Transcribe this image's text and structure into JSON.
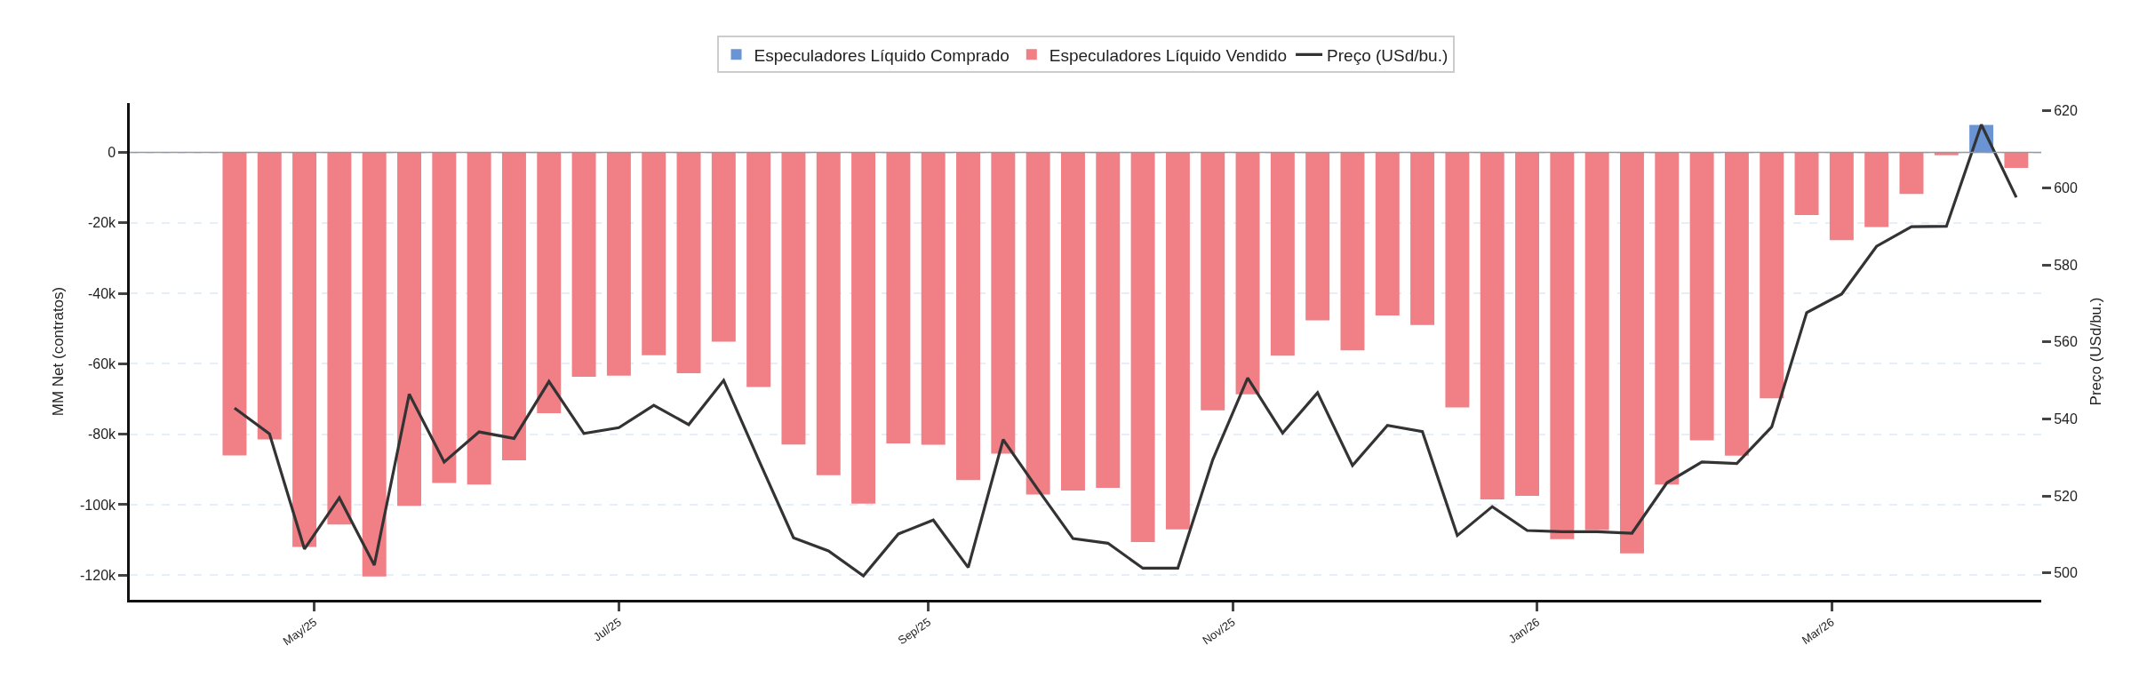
{
  "chart_data": {
    "type": "bar",
    "x": [
      "2025-04-15",
      "2025-04-22",
      "2025-04-29",
      "2025-05-06",
      "2025-05-13",
      "2025-05-20",
      "2025-05-27",
      "2025-06-03",
      "2025-06-10",
      "2025-06-17",
      "2025-06-24",
      "2025-07-01",
      "2025-07-08",
      "2025-07-15",
      "2025-07-22",
      "2025-07-29",
      "2025-08-05",
      "2025-08-12",
      "2025-08-19",
      "2025-08-26",
      "2025-09-02",
      "2025-09-09",
      "2025-09-16",
      "2025-09-23",
      "2025-09-30",
      "2025-10-07",
      "2025-10-14",
      "2025-10-21",
      "2025-10-28",
      "2025-11-04",
      "2025-11-11",
      "2025-11-18",
      "2025-11-25",
      "2025-12-02",
      "2025-12-09",
      "2025-12-16",
      "2025-12-23",
      "2025-12-30",
      "2026-01-06",
      "2026-01-13",
      "2026-01-20",
      "2026-01-27",
      "2026-02-03",
      "2026-02-10",
      "2026-02-17",
      "2026-02-24",
      "2026-03-03",
      "2026-03-10",
      "2026-03-17",
      "2026-03-24",
      "2026-03-31",
      "2026-04-07"
    ],
    "series": [
      {
        "name": "Especuladores Líquido Comprado",
        "color": "#6a94d4",
        "values": [
          null,
          null,
          null,
          null,
          null,
          null,
          null,
          null,
          null,
          null,
          null,
          null,
          null,
          null,
          null,
          null,
          null,
          null,
          null,
          null,
          null,
          null,
          null,
          null,
          null,
          null,
          null,
          null,
          null,
          null,
          null,
          null,
          null,
          null,
          null,
          null,
          null,
          null,
          null,
          null,
          null,
          null,
          null,
          null,
          null,
          null,
          null,
          null,
          null,
          null,
          7800,
          null
        ]
      },
      {
        "name": "Especuladores Líquido Vendido",
        "color": "#f07f86",
        "values": [
          -86000,
          -81500,
          -112000,
          -105600,
          -120400,
          -100300,
          -93800,
          -94300,
          -87400,
          -74000,
          -63700,
          -63400,
          -57600,
          -62700,
          -53700,
          -66600,
          -82900,
          -91600,
          -99700,
          -82600,
          -83000,
          -93000,
          -85500,
          -97100,
          -96000,
          -95200,
          -110600,
          -107000,
          -73200,
          -68700,
          -57700,
          -47700,
          -56200,
          -46300,
          -49000,
          -72400,
          -98500,
          -97500,
          -109800,
          -107200,
          -113800,
          -94300,
          -81700,
          -86100,
          -69800,
          -17800,
          -24900,
          -21200,
          -11800,
          -800,
          null,
          -4400
        ]
      },
      {
        "name": "Preço (USd/bu.)",
        "type": "line",
        "axis": "y2",
        "color": "#333333",
        "values": [
          542.8,
          536.1,
          506.2,
          519.5,
          502.0,
          546.4,
          528.8,
          536.6,
          534.9,
          549.7,
          536.2,
          537.7,
          543.5,
          538.5,
          550.0,
          529.4,
          509.1,
          505.7,
          499.2,
          510.1,
          513.7,
          501.4,
          534.6,
          521.6,
          508.9,
          507.7,
          501.2,
          501.2,
          529.4,
          550.6,
          536.3,
          546.8,
          527.9,
          538.3,
          536.7,
          509.7,
          517.2,
          511.0,
          510.7,
          510.7,
          510.3,
          523.4,
          528.8,
          528.4,
          537.9,
          567.6,
          572.4,
          584.8,
          589.9,
          590.0,
          616.4,
          597.5
        ]
      }
    ],
    "xlim": [
      "2025-03-25",
      "2026-04-12"
    ],
    "xticks": [
      {
        "value": "2025-05-01",
        "label": "May/25"
      },
      {
        "value": "2025-07-01",
        "label": "Jul/25"
      },
      {
        "value": "2025-09-01",
        "label": "Sep/25"
      },
      {
        "value": "2025-11-01",
        "label": "Nov/25"
      },
      {
        "value": "2026-01-01",
        "label": "Jan/26"
      },
      {
        "value": "2026-03-01",
        "label": "Mar/26"
      }
    ],
    "ylim": [
      -127000,
      14000
    ],
    "yticks": [
      {
        "value": -120000,
        "label": "-120k"
      },
      {
        "value": -100000,
        "label": "-100k"
      },
      {
        "value": -80000,
        "label": "-80k"
      },
      {
        "value": -60000,
        "label": "-60k"
      },
      {
        "value": -40000,
        "label": "-40k"
      },
      {
        "value": -20000,
        "label": "-20k"
      },
      0
    ],
    "y2lim": [
      493,
      622
    ],
    "y2ticks": [
      500,
      520,
      540,
      560,
      580,
      600,
      620
    ],
    "ylabel": "MM Net (contratos)",
    "y2label": "Preço (USd/bu.)",
    "grid": "y",
    "legend": "top",
    "ref_lines": [
      {
        "axis": "y",
        "value": 0,
        "color": "#999999"
      }
    ]
  }
}
